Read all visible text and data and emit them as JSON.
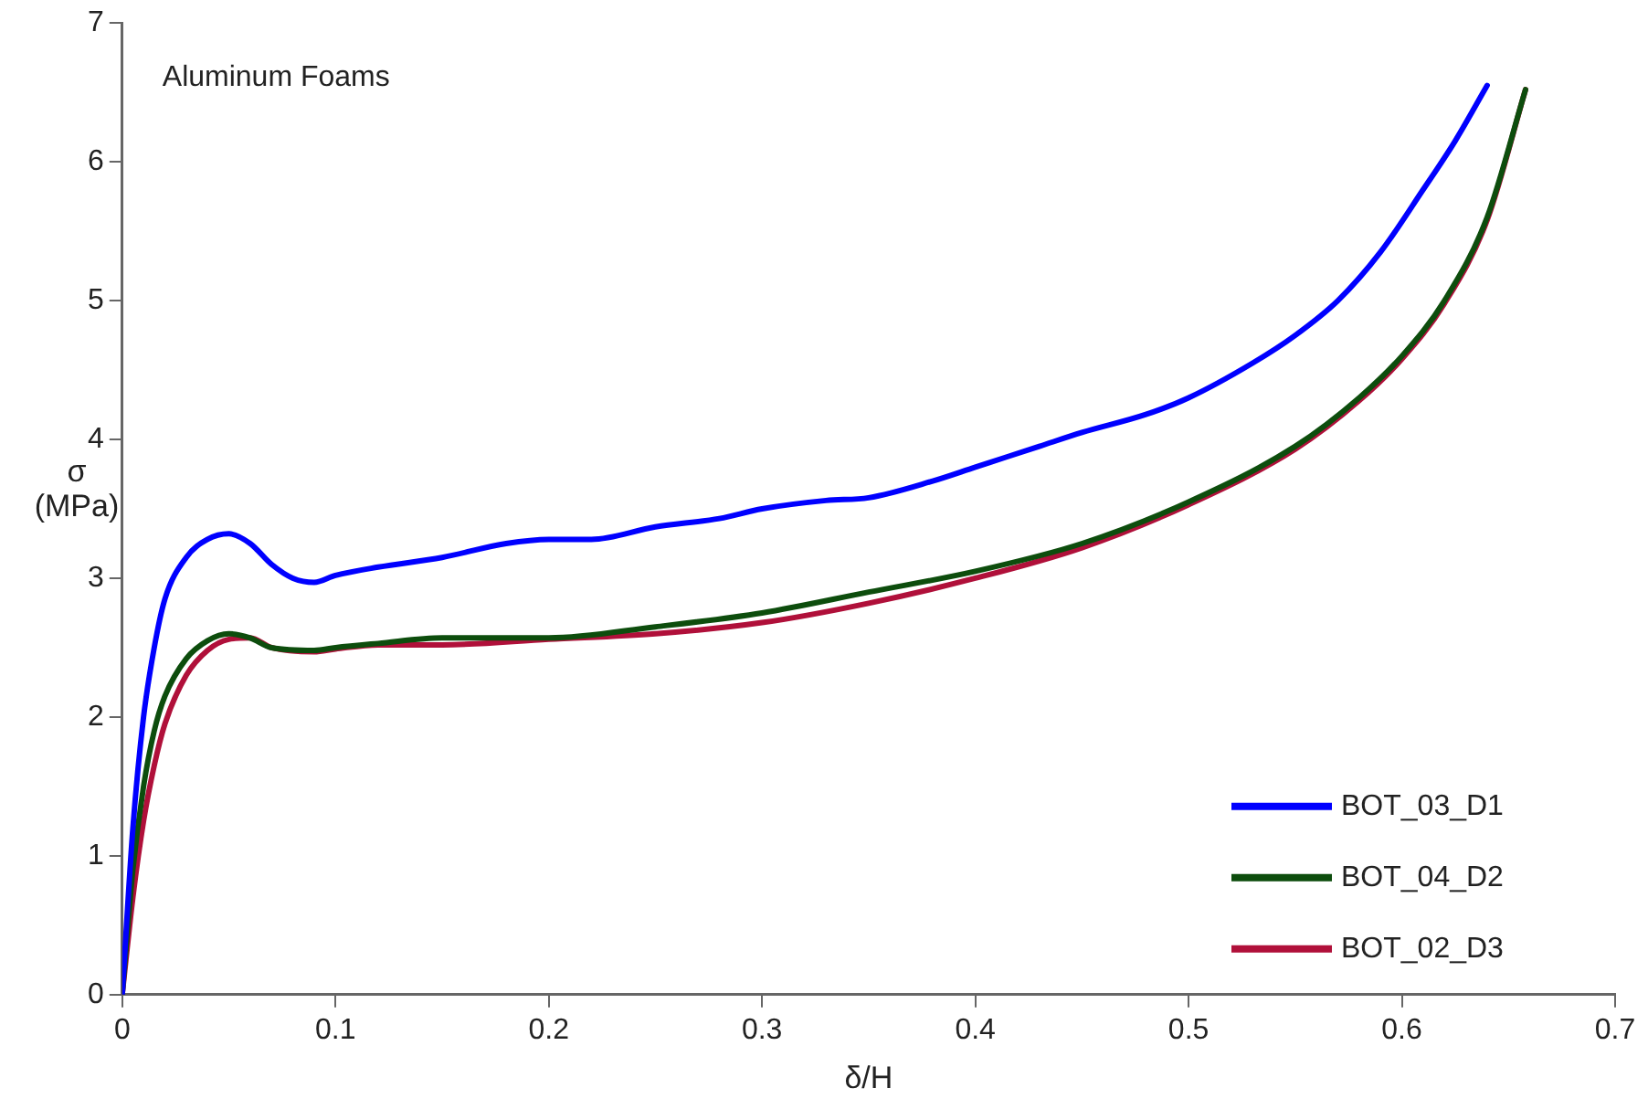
{
  "chart_data": {
    "type": "line",
    "xlabel": "δ/H",
    "ylabel": "σ (MPa)",
    "annotations": [
      "Aluminum Foams"
    ],
    "xlim": [
      0,
      0.7
    ],
    "xticks": [
      0,
      0.1,
      0.2,
      0.3,
      0.4,
      0.5,
      0.6,
      0.7
    ],
    "ylim": [
      0,
      7
    ],
    "yticks": [
      0,
      1,
      2,
      3,
      4,
      5,
      6,
      7
    ],
    "grid": false,
    "legend": "bottom right",
    "marker": "none",
    "line_style": "solid",
    "series": [
      {
        "name": "BOT_03_D1",
        "color": "#0000ff",
        "x": [
          0,
          0.005,
          0.01,
          0.015,
          0.02,
          0.03,
          0.04,
          0.05,
          0.06,
          0.07,
          0.08,
          0.09,
          0.1,
          0.12,
          0.15,
          0.18,
          0.2,
          0.22,
          0.25,
          0.28,
          0.3,
          0.33,
          0.35,
          0.38,
          0.4,
          0.43,
          0.45,
          0.48,
          0.5,
          0.53,
          0.55,
          0.57,
          0.59,
          0.61,
          0.625,
          0.64
        ],
        "values": [
          0,
          1.2,
          2.0,
          2.5,
          2.85,
          3.15,
          3.28,
          3.32,
          3.25,
          3.1,
          3.0,
          2.97,
          3.02,
          3.08,
          3.15,
          3.25,
          3.28,
          3.28,
          3.37,
          3.43,
          3.5,
          3.56,
          3.58,
          3.7,
          3.8,
          3.95,
          4.05,
          4.18,
          4.3,
          4.55,
          4.75,
          5.0,
          5.35,
          5.8,
          6.15,
          6.55
        ]
      },
      {
        "name": "BOT_04_D2",
        "color": "#0d4d0d",
        "x": [
          0,
          0.005,
          0.01,
          0.015,
          0.02,
          0.03,
          0.04,
          0.05,
          0.06,
          0.07,
          0.09,
          0.1,
          0.12,
          0.15,
          0.2,
          0.25,
          0.3,
          0.35,
          0.4,
          0.45,
          0.5,
          0.55,
          0.58,
          0.6,
          0.62,
          0.64,
          0.658
        ],
        "values": [
          0,
          0.9,
          1.5,
          1.9,
          2.15,
          2.42,
          2.55,
          2.6,
          2.57,
          2.5,
          2.48,
          2.5,
          2.53,
          2.57,
          2.57,
          2.65,
          2.75,
          2.9,
          3.05,
          3.25,
          3.55,
          3.95,
          4.3,
          4.6,
          5.0,
          5.6,
          6.52
        ]
      },
      {
        "name": "BOT_02_D3",
        "color": "#b0103a",
        "x": [
          0,
          0.005,
          0.01,
          0.015,
          0.02,
          0.03,
          0.04,
          0.05,
          0.06,
          0.07,
          0.09,
          0.1,
          0.12,
          0.15,
          0.2,
          0.25,
          0.3,
          0.35,
          0.4,
          0.45,
          0.5,
          0.55,
          0.58,
          0.6,
          0.62,
          0.64,
          0.658
        ],
        "values": [
          0,
          0.7,
          1.25,
          1.65,
          1.95,
          2.3,
          2.48,
          2.56,
          2.57,
          2.5,
          2.47,
          2.49,
          2.52,
          2.52,
          2.56,
          2.6,
          2.68,
          2.82,
          3.0,
          3.22,
          3.53,
          3.93,
          4.28,
          4.58,
          4.98,
          5.58,
          6.52
        ]
      }
    ]
  }
}
